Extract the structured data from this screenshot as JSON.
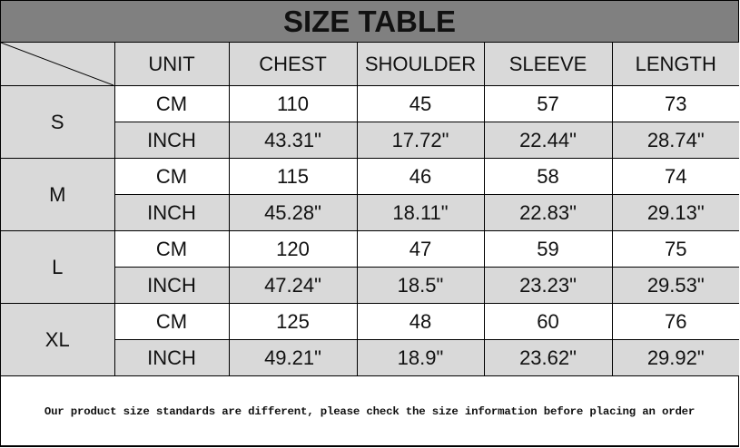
{
  "title": "SIZE TABLE",
  "headers": [
    "UNIT",
    "CHEST",
    "SHOULDER",
    "SLEEVE",
    "LENGTH"
  ],
  "sizes": [
    {
      "size": "S",
      "rows": [
        {
          "unit": "CM",
          "values": [
            "110",
            "45",
            "57",
            "73"
          ]
        },
        {
          "unit": "INCH",
          "values": [
            "43.31\"",
            "17.72\"",
            "22.44\"",
            "28.74\""
          ]
        }
      ]
    },
    {
      "size": "M",
      "rows": [
        {
          "unit": "CM",
          "values": [
            "115",
            "46",
            "58",
            "74"
          ]
        },
        {
          "unit": "INCH",
          "values": [
            "45.28\"",
            "18.11\"",
            "22.83\"",
            "29.13\""
          ]
        }
      ]
    },
    {
      "size": "L",
      "rows": [
        {
          "unit": "CM",
          "values": [
            "120",
            "47",
            "59",
            "75"
          ]
        },
        {
          "unit": "INCH",
          "values": [
            "47.24\"",
            "18.5\"",
            "23.23\"",
            "29.53\""
          ]
        }
      ]
    },
    {
      "size": "XL",
      "rows": [
        {
          "unit": "CM",
          "values": [
            "125",
            "48",
            "60",
            "76"
          ]
        },
        {
          "unit": "INCH",
          "values": [
            "49.21\"",
            "18.9\"",
            "23.62\"",
            "29.92\""
          ]
        }
      ]
    }
  ],
  "footer_note": "Our product size standards are different, please check the size information before placing an order",
  "colors": {
    "title_bg": "#808080",
    "shaded_cell": "#d9d9d9",
    "plain_cell": "#ffffff"
  }
}
